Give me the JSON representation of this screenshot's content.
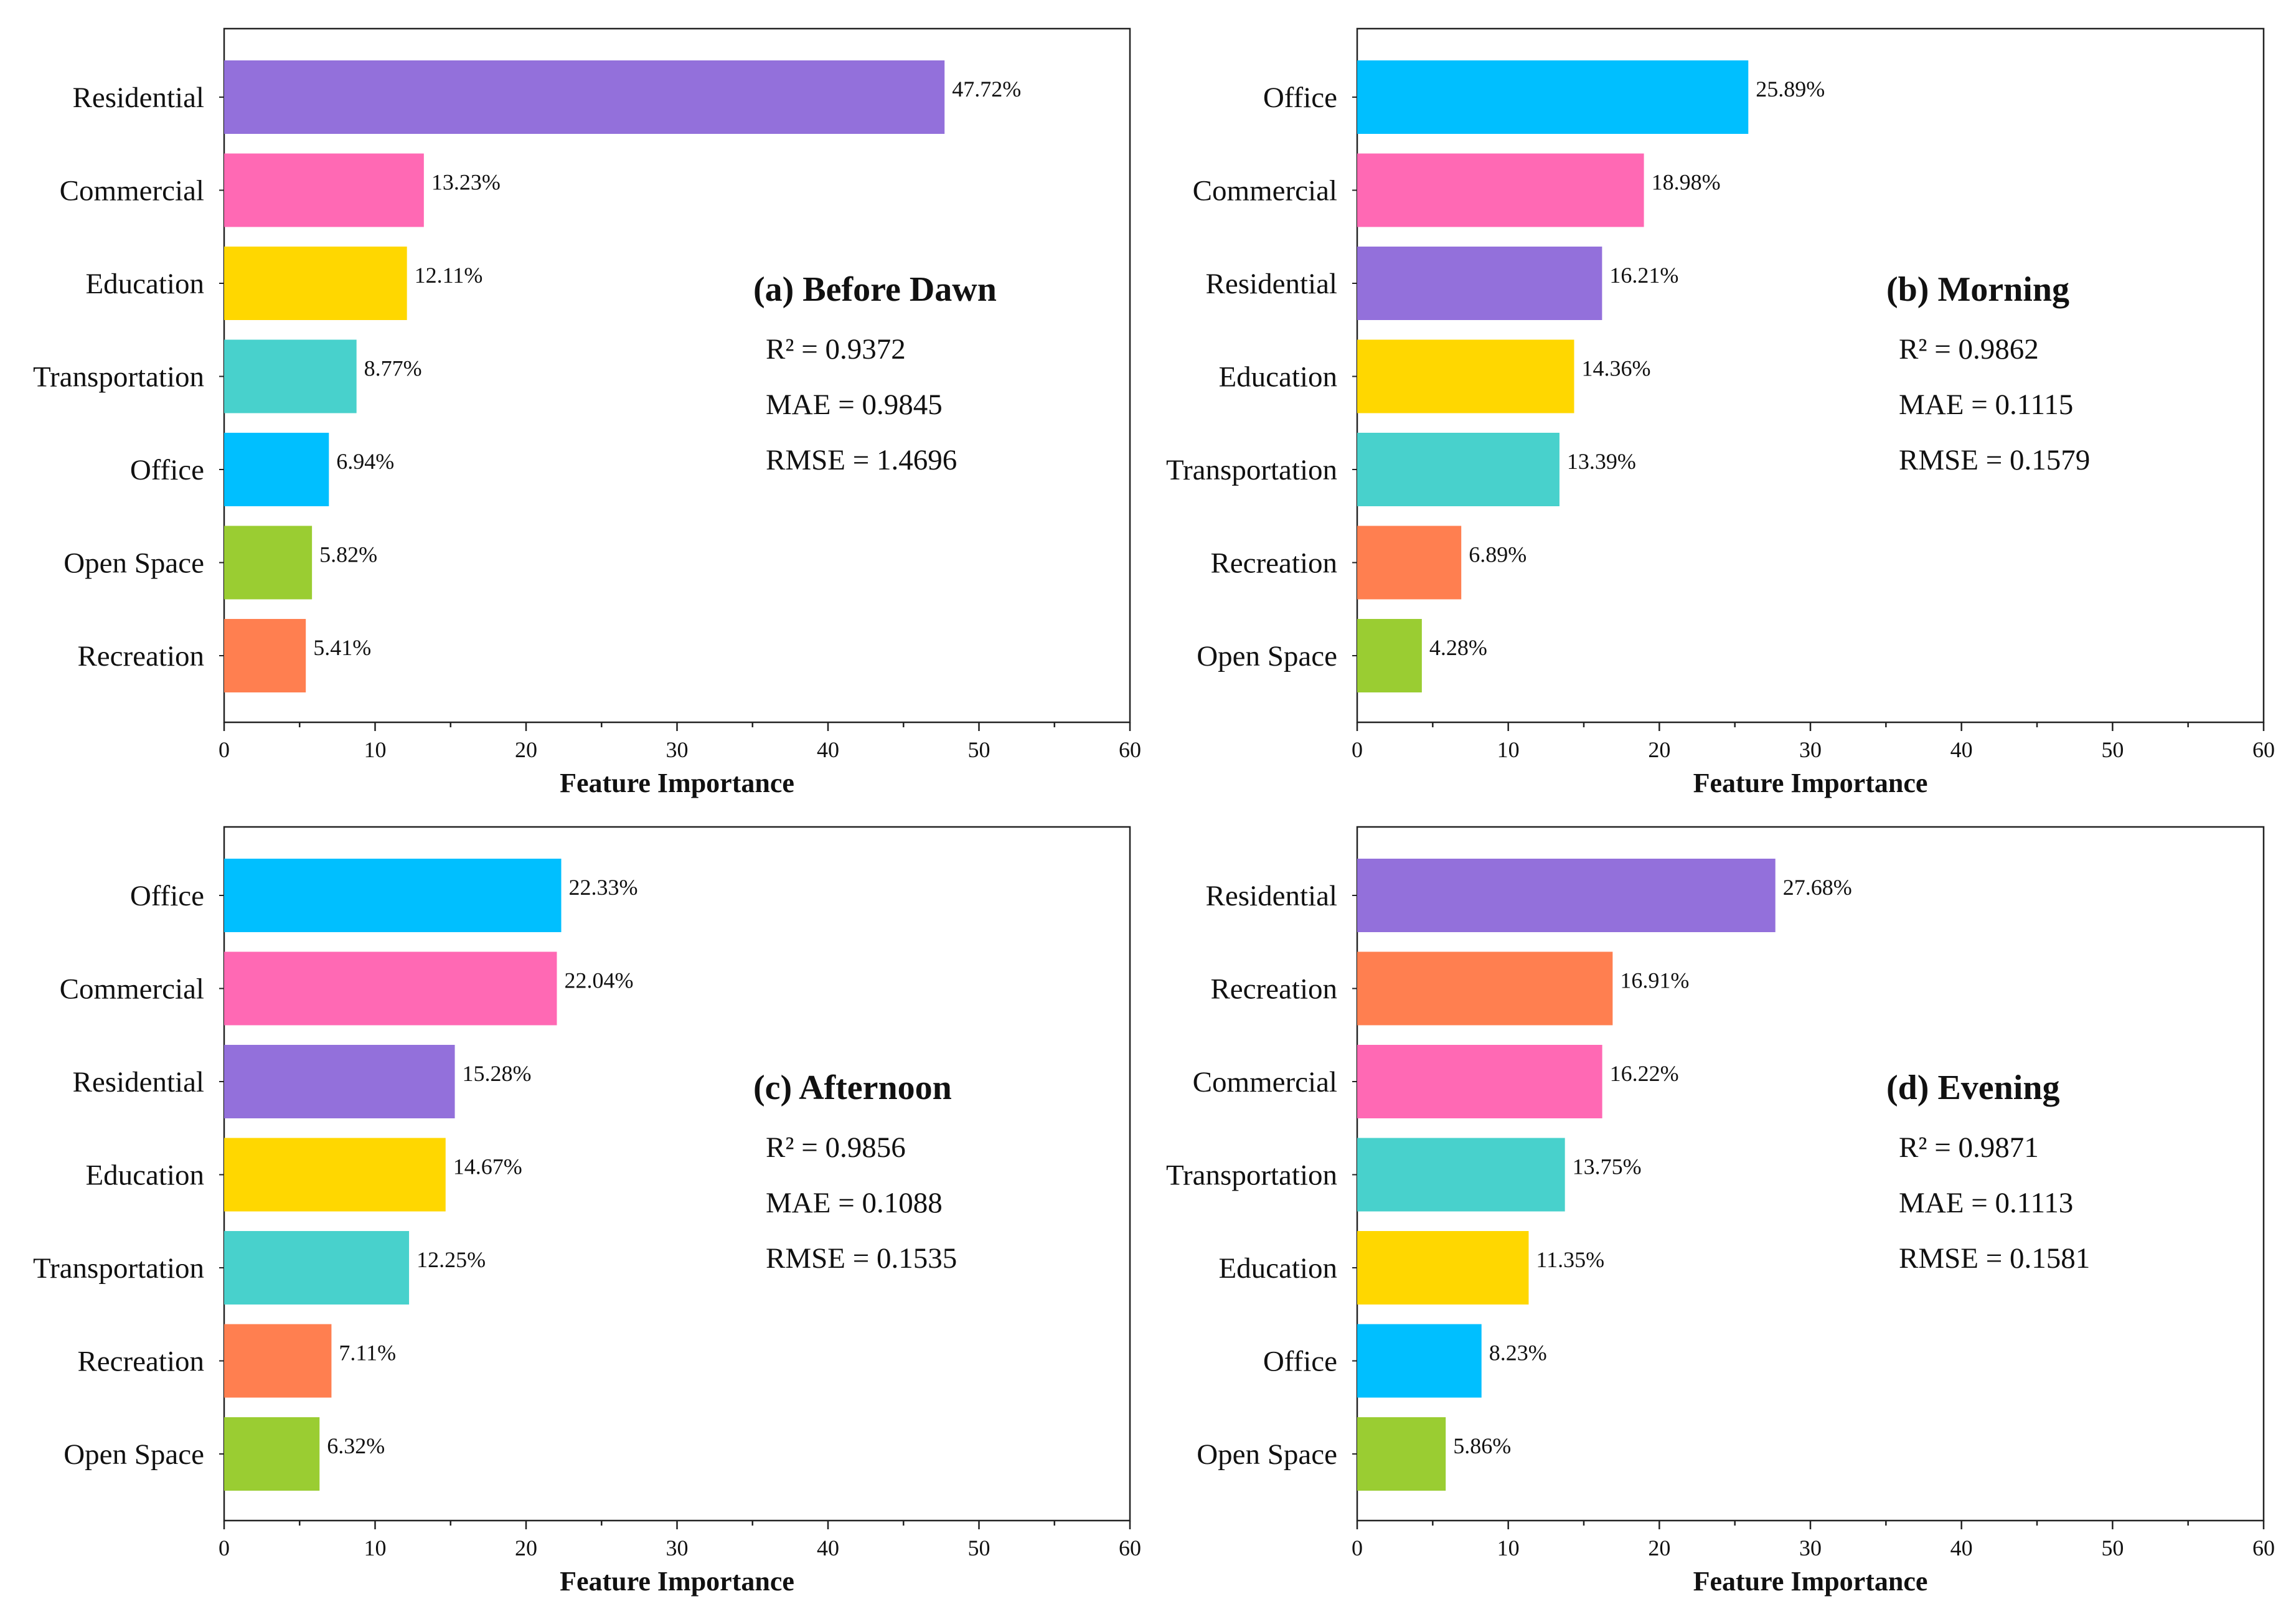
{
  "chart_data": [
    {
      "type": "bar",
      "orientation": "horizontal",
      "title": "(a) Before Dawn",
      "xlabel": "Feature Importance",
      "xlim": [
        0,
        60
      ],
      "xticks": [
        "0",
        "10",
        "20",
        "30",
        "40",
        "50",
        "60"
      ],
      "categories": [
        "Residential",
        "Commercial",
        "Education",
        "Transportation",
        "Office",
        "Open Space",
        "Recreation"
      ],
      "values": [
        47.72,
        13.23,
        12.11,
        8.77,
        6.94,
        5.82,
        5.41
      ],
      "value_labels": [
        "47.72%",
        "13.23%",
        "12.11%",
        "8.77%",
        "6.94%",
        "5.82%",
        "5.41%"
      ],
      "colors": [
        "#9370DB",
        "#FF69B4",
        "#FFD700",
        "#48D1CC",
        "#00BFFF",
        "#9ACD32",
        "#FF7F50"
      ],
      "metrics": [
        "R² = 0.9372",
        "MAE = 0.9845",
        "RMSE = 1.4696"
      ]
    },
    {
      "type": "bar",
      "orientation": "horizontal",
      "title": "(b) Morning",
      "xlabel": "Feature Importance",
      "xlim": [
        0,
        60
      ],
      "xticks": [
        "0",
        "10",
        "20",
        "30",
        "40",
        "50",
        "60"
      ],
      "categories": [
        "Office",
        "Commercial",
        "Residential",
        "Education",
        "Transportation",
        "Recreation",
        "Open Space"
      ],
      "values": [
        25.89,
        18.98,
        16.21,
        14.36,
        13.39,
        6.89,
        4.28
      ],
      "value_labels": [
        "25.89%",
        "18.98%",
        "16.21%",
        "14.36%",
        "13.39%",
        "6.89%",
        "4.28%"
      ],
      "colors": [
        "#00BFFF",
        "#FF69B4",
        "#9370DB",
        "#FFD700",
        "#48D1CC",
        "#FF7F50",
        "#9ACD32"
      ],
      "metrics": [
        "R² = 0.9862",
        "MAE = 0.1115",
        "RMSE = 0.1579"
      ]
    },
    {
      "type": "bar",
      "orientation": "horizontal",
      "title": "(c) Afternoon",
      "xlabel": "Feature Importance",
      "xlim": [
        0,
        60
      ],
      "xticks": [
        "0",
        "10",
        "20",
        "30",
        "40",
        "50",
        "60"
      ],
      "categories": [
        "Office",
        "Commercial",
        "Residential",
        "Education",
        "Transportation",
        "Recreation",
        "Open Space"
      ],
      "values": [
        22.33,
        22.04,
        15.28,
        14.67,
        12.25,
        7.11,
        6.32
      ],
      "value_labels": [
        "22.33%",
        "22.04%",
        "15.28%",
        "14.67%",
        "12.25%",
        "7.11%",
        "6.32%"
      ],
      "colors": [
        "#00BFFF",
        "#FF69B4",
        "#9370DB",
        "#FFD700",
        "#48D1CC",
        "#FF7F50",
        "#9ACD32"
      ],
      "metrics": [
        "R² = 0.9856",
        "MAE = 0.1088",
        "RMSE = 0.1535"
      ]
    },
    {
      "type": "bar",
      "orientation": "horizontal",
      "title": "(d) Evening",
      "xlabel": "Feature Importance",
      "xlim": [
        0,
        60
      ],
      "xticks": [
        "0",
        "10",
        "20",
        "30",
        "40",
        "50",
        "60"
      ],
      "categories": [
        "Residential",
        "Recreation",
        "Commercial",
        "Transportation",
        "Education",
        "Office",
        "Open Space"
      ],
      "values": [
        27.68,
        16.91,
        16.22,
        13.75,
        11.35,
        8.23,
        5.86
      ],
      "value_labels": [
        "27.68%",
        "16.91%",
        "16.22%",
        "13.75%",
        "11.35%",
        "8.23%",
        "5.86%"
      ],
      "colors": [
        "#9370DB",
        "#FF7F50",
        "#FF69B4",
        "#48D1CC",
        "#FFD700",
        "#00BFFF",
        "#9ACD32"
      ],
      "metrics": [
        "R² = 0.9871",
        "MAE = 0.1113",
        "RMSE = 0.1581"
      ]
    }
  ]
}
